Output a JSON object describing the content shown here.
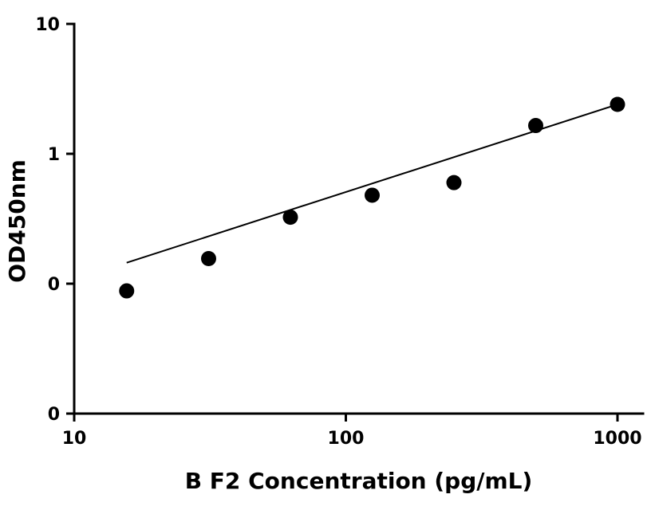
{
  "chart_data": {
    "type": "scatter",
    "title": "",
    "xlabel": "B F2 Concentration (pg/mL)",
    "ylabel": "OD450nm",
    "x_scale": "log",
    "y_scale": "log",
    "xlim": [
      10,
      1200
    ],
    "ylim": [
      0.01,
      10
    ],
    "x_ticks": [
      {
        "value": 10,
        "label": "10"
      },
      {
        "value": 100,
        "label": "100"
      },
      {
        "value": 1000,
        "label": "1000"
      }
    ],
    "y_ticks": [
      {
        "value": 0.01,
        "label": "0"
      },
      {
        "value": 0.1,
        "label": "0"
      },
      {
        "value": 1,
        "label": "1"
      },
      {
        "value": 10,
        "label": "10"
      }
    ],
    "grid": false,
    "legend": "none",
    "series": [
      {
        "x": [
          15.6,
          31.25,
          62.5,
          125,
          250,
          500,
          1000
        ],
        "y": [
          0.088,
          0.156,
          0.325,
          0.48,
          0.6,
          1.65,
          2.4
        ]
      }
    ],
    "fit_line": {
      "x": [
        15.6,
        1000
      ],
      "y": [
        0.145,
        2.4
      ]
    },
    "colors": {
      "points": "#000000",
      "line": "#000000",
      "axes": "#000000"
    }
  }
}
